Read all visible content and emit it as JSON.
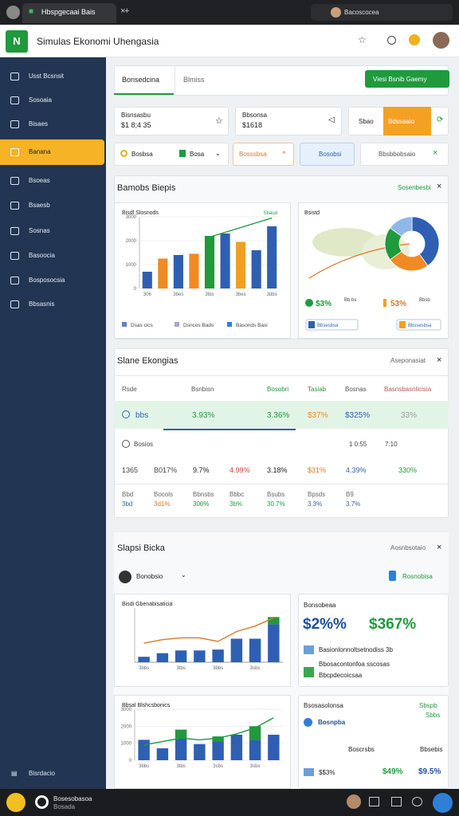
{
  "browser": {
    "tab": "Hbspgecaai Bais",
    "profile": "Bacoscocea"
  },
  "header": {
    "title": "Simulas Ekonomi Uhengasia"
  },
  "sidebar": {
    "items": [
      "Usst Bcsnsit",
      "Sosoaia",
      "Bisaes",
      "Banana",
      "Bsoeas",
      "Bsaesb",
      "Sosnas",
      "Basoocia",
      "Bosposocsia",
      "Bbsasnis"
    ],
    "active": 3,
    "footer": "Bisrdacio"
  },
  "tabs": [
    "Bonsedcina",
    "Blmiss"
  ],
  "action_button": "Viesi Bsnib Gaemy",
  "stat_cards": [
    {
      "label": "Bisnsasbu",
      "value": "$1 8;4 35"
    },
    {
      "label": "Bbsonsa",
      "value": "$1618"
    },
    {
      "label": "Sbao",
      "value": "Bdssaaio"
    }
  ],
  "filters": [
    "Bosbsa",
    "Bosa",
    "Bosssbsa",
    "Bosobsi",
    "Bbsbbobsaio"
  ],
  "overview": {
    "title": "Bamobs Biepis",
    "link": "Sosenbesbi",
    "chart1": {
      "type": "bar",
      "title": "Bisdl Slosnods",
      "tag": "Sbaud",
      "categories": [
        "306",
        null,
        "3bes",
        null,
        "3tbs",
        null,
        "3bes",
        null,
        "3dbs"
      ],
      "bars": [
        700,
        1250,
        1400,
        1450,
        2200,
        2300,
        1950,
        1600,
        2600
      ],
      "bar_colors": [
        "#2f5fb3",
        "#f08a24",
        "#2f5fb3",
        "#f08a24",
        "#1f9a3c",
        "#2f5fb3",
        "#f0a020",
        "#2f5fb3",
        "#2f5fb3"
      ],
      "line": [
        null,
        null,
        null,
        null,
        2150,
        2350,
        2550,
        2750,
        2950
      ],
      "line_color": "#1f9a3c",
      "ylim": [
        0,
        3000
      ],
      "yticks": [
        0,
        1000,
        2000,
        3000
      ],
      "legend": [
        "Dsas cics",
        "Dsncos Bads",
        "Basonds Basi"
      ]
    },
    "chart2": {
      "type": "pie",
      "title": "Bsistd",
      "values": [
        40,
        25,
        20,
        15
      ],
      "colors": [
        "#2f5fb3",
        "#f08a24",
        "#1f9a3c",
        "#8fb8e8"
      ],
      "stats": [
        "$3%",
        "Bb bs",
        "53%",
        "Bbsb"
      ],
      "buttons": [
        "Bbsesbsa",
        "Bbssesbsa"
      ]
    }
  },
  "table": {
    "title": "Slane Ekongias",
    "link": "Aseponasiat",
    "header": [
      "Rsde",
      "Bsnbisn",
      "Bosobri",
      "Tasiab",
      "Bosnas",
      "Basnsbasnlicisia"
    ],
    "rows": [
      [
        "bbs",
        "3.93%",
        "3.36%",
        "$37%",
        "$325%",
        "33%"
      ],
      [
        "Bosios",
        null,
        null,
        null,
        "1 0:55",
        "7:10"
      ],
      [
        "1365",
        "B017%",
        "9.7%",
        "4.99%",
        "3.18%",
        "$31%",
        "4.39%",
        "330%"
      ],
      [
        "Bbd",
        "Bocols",
        "Bbnsbs",
        "Bbbc",
        "Bsubs",
        "Bpsds",
        "B9"
      ],
      [
        "3bd",
        "3d1%",
        "300%",
        "3b%",
        "30.7%",
        "3.3%",
        "3.7%"
      ]
    ]
  },
  "signals": {
    "title": "Slapsi Bicka",
    "link": "Aosnbsotaio",
    "dropdown": "Bonobsio",
    "badge": "Rosnobisa",
    "chart3": {
      "type": "bar",
      "title": "Bisdi Gbenabisaticia",
      "categories": [
        "3bbs",
        null,
        "3tbs",
        null,
        "3bbs",
        null,
        "3sbs",
        null
      ],
      "bars": [
        300,
        500,
        650,
        650,
        700,
        1300,
        1300,
        2100
      ],
      "bars_top": [
        0,
        0,
        0,
        0,
        0,
        0,
        0,
        400
      ],
      "bar_colors": [
        "#2f5fb3",
        "#2f5fb3",
        "#2f5fb3",
        "#2f5fb3",
        "#2f5fb3",
        "#2f5fb3",
        "#2f5fb3",
        "#2f5fb3"
      ],
      "top_color": "#1f9a3c",
      "line": [
        1050,
        1250,
        1350,
        1350,
        1150,
        1700,
        2000,
        2450
      ],
      "line_color": "#d9782a",
      "ylim": [
        0,
        3000
      ]
    },
    "card1": {
      "label": "Bonsobeaa",
      "value_a": "$2%%",
      "value_b": "$367%",
      "lines": [
        "Basionlonnoltsetnodiss 3b",
        "Bbosacontonfoa sscosas",
        "Bbcpdecoicsaa"
      ]
    },
    "chart4": {
      "type": "bar",
      "title": "Bbsal Blshcsbonics",
      "categories": [
        "3bbs",
        null,
        "3tbs",
        null,
        "3sbs",
        null,
        "3sbs",
        null
      ],
      "bars": [
        1200,
        700,
        1300,
        950,
        1100,
        1500,
        1200,
        1500
      ],
      "bars_top": [
        0,
        0,
        500,
        0,
        300,
        0,
        800,
        0
      ],
      "bar_colors": [
        "#2f5fb3",
        "#2f5fb3",
        "#2f5fb3",
        "#2f5fb3",
        "#2f5fb3",
        "#2f5fb3",
        "#2f5fb3",
        "#2f5fb3"
      ],
      "top_color": "#1f9a3c",
      "line": [
        900,
        1100,
        1300,
        1200,
        1300,
        1550,
        1900,
        2500
      ],
      "line_color": "#1f9a3c",
      "ylim": [
        0,
        3000
      ],
      "yticks": [
        0,
        1000,
        2000,
        3000
      ]
    },
    "card2": {
      "label": "Bsosasolonsa",
      "tag": "Sbspb",
      "tag_value": "Sbbs",
      "title": "Bosnpba",
      "lines": [
        "Boscrsbs",
        "Bbsebis"
      ],
      "stats": [
        "$$3%",
        "$49%",
        "$9.5%"
      ]
    }
  },
  "bottom": {
    "title": "Bosesobasoa",
    "subtitle": "Bosada"
  }
}
